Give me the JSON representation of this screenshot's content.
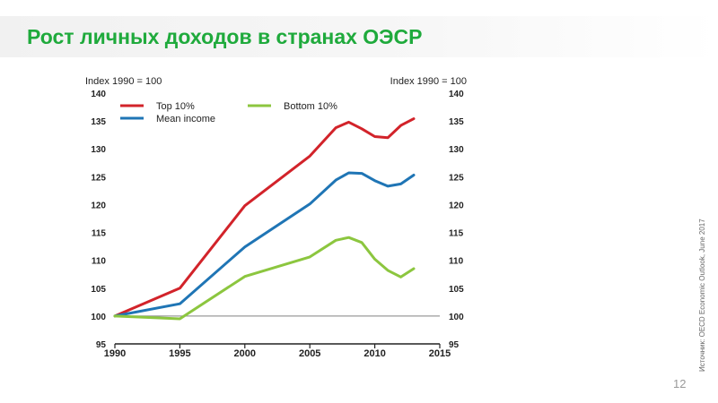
{
  "slide": {
    "title": "Рост личных доходов в странах ОЭСР",
    "source": "Источник: OECD Economic Outlook, June 2017",
    "page_number": "12"
  },
  "colors": {
    "title": "#1faa3c",
    "top10": "#d2232a",
    "mean": "#1f75b5",
    "bottom10": "#8cc63f"
  },
  "chart_data": {
    "type": "line",
    "left_axis_label": "Index 1990 = 100",
    "right_axis_label": "Index 1990 = 100",
    "xlim": [
      1990,
      2015
    ],
    "ylim": [
      95,
      140
    ],
    "x_ticks": [
      1990,
      1995,
      2000,
      2005,
      2010,
      2015
    ],
    "y_ticks": [
      95,
      100,
      105,
      110,
      115,
      120,
      125,
      130,
      135,
      140
    ],
    "reference_line": 100,
    "grid": false,
    "legend_position": "top-left",
    "series": [
      {
        "name": "Top 10%",
        "color": "#d2232a",
        "points": [
          [
            1990,
            100
          ],
          [
            1995,
            105
          ],
          [
            2000,
            119.8
          ],
          [
            2005,
            128.7
          ],
          [
            2007,
            133.8
          ],
          [
            2008,
            134.8
          ],
          [
            2009,
            133.6
          ],
          [
            2010,
            132.2
          ],
          [
            2011,
            132
          ],
          [
            2012,
            134.2
          ],
          [
            2013,
            135.4
          ]
        ]
      },
      {
        "name": "Mean income",
        "color": "#1f75b5",
        "points": [
          [
            1990,
            100
          ],
          [
            1995,
            102.2
          ],
          [
            2000,
            112.4
          ],
          [
            2005,
            120.1
          ],
          [
            2007,
            124.4
          ],
          [
            2008,
            125.7
          ],
          [
            2009,
            125.6
          ],
          [
            2010,
            124.3
          ],
          [
            2011,
            123.3
          ],
          [
            2012,
            123.7
          ],
          [
            2013,
            125.3
          ]
        ]
      },
      {
        "name": "Bottom 10%",
        "color": "#8cc63f",
        "points": [
          [
            1990,
            100
          ],
          [
            1995,
            99.5
          ],
          [
            2000,
            107.1
          ],
          [
            2005,
            110.6
          ],
          [
            2007,
            113.6
          ],
          [
            2008,
            114.1
          ],
          [
            2009,
            113.2
          ],
          [
            2010,
            110.2
          ],
          [
            2011,
            108.2
          ],
          [
            2012,
            107
          ],
          [
            2013,
            108.5
          ]
        ]
      }
    ]
  }
}
